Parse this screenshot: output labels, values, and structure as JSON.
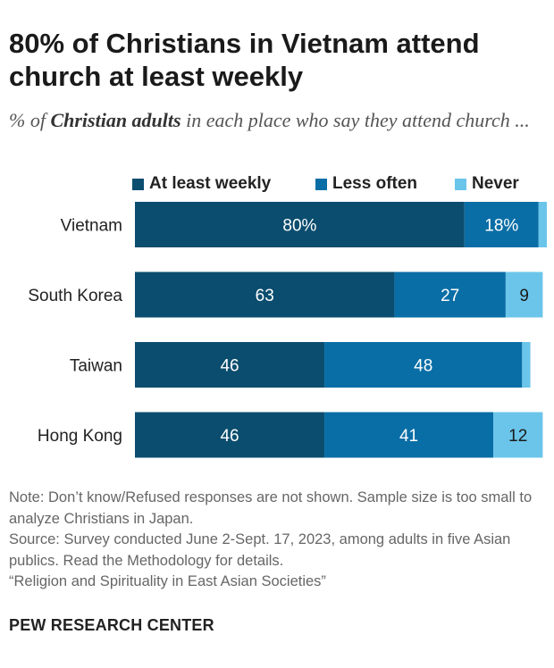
{
  "title": "80% of Christians in Vietnam attend church at least weekly",
  "subtitle": {
    "prefix": "% of ",
    "emphasis": "Christian adults",
    "suffix": " in each place who say they attend church ..."
  },
  "colors": {
    "weekly": "#0b4d6e",
    "less": "#0a6ea6",
    "never": "#6bc5ea",
    "label_light": "#ffffff",
    "label_dark": "#1a1a1a"
  },
  "chart_data": {
    "type": "bar",
    "orientation": "horizontal",
    "stacked": true,
    "title": "80% of Christians in Vietnam attend church at least weekly",
    "categories": [
      "Vietnam",
      "South Korea",
      "Taiwan",
      "Hong Kong"
    ],
    "series": [
      {
        "name": "At least weekly",
        "values": [
          80,
          63,
          46,
          46
        ],
        "labels": [
          "80%",
          "63",
          "46",
          "46"
        ]
      },
      {
        "name": "Less often",
        "values": [
          18,
          27,
          48,
          41
        ],
        "labels": [
          "18%",
          "27",
          "48",
          "41"
        ]
      },
      {
        "name": "Never",
        "values": [
          2,
          9,
          2,
          12
        ],
        "labels": [
          "",
          "9",
          "",
          "12"
        ]
      }
    ],
    "xlim": [
      0,
      100
    ],
    "xlabel": "",
    "ylabel": "",
    "legend": "top"
  },
  "notes": [
    "Note: Don’t know/Refused responses are not shown. Sample size is too small to analyze Christians in Japan.",
    "Source: Survey conducted June 2-Sept. 17, 2023, among adults in five Asian publics. Read the Methodology for details.",
    "“Religion and Spirituality in East Asian Societies”"
  ],
  "brand": "PEW RESEARCH CENTER"
}
